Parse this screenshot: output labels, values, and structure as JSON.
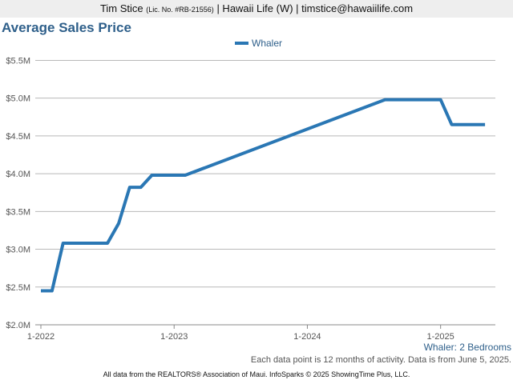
{
  "header": {
    "agent_name": "Tim Stice",
    "license": "(Lic. No. #RB-21556)",
    "rest": "| Hawaii Life (W) | timstice@hawaiilife.com"
  },
  "colors": {
    "series": "#2a77b4",
    "title": "#2e5f8a",
    "grid": "#b8b8b8"
  },
  "chart_data": {
    "type": "line",
    "title": "Average Sales Price",
    "xlabel": "",
    "ylabel": "",
    "x_ticks": [
      "1-2022",
      "1-2023",
      "1-2024",
      "1-2025"
    ],
    "y_ticks": [
      "$2.0M",
      "$2.5M",
      "$3.0M",
      "$3.5M",
      "$4.0M",
      "$4.5M",
      "$5.0M",
      "$5.5M"
    ],
    "ylim": [
      2000000,
      5600000
    ],
    "xlim": [
      "2022-01",
      "2025-05"
    ],
    "grid": true,
    "legend_position": "top-center",
    "series": [
      {
        "name": "Whaler",
        "points": [
          {
            "x": "2022-01",
            "y": 2450000
          },
          {
            "x": "2022-02",
            "y": 2450000
          },
          {
            "x": "2022-03",
            "y": 3080000
          },
          {
            "x": "2022-04",
            "y": 3080000
          },
          {
            "x": "2022-05",
            "y": 3080000
          },
          {
            "x": "2022-06",
            "y": 3080000
          },
          {
            "x": "2022-07",
            "y": 3080000
          },
          {
            "x": "2022-08",
            "y": 3340000
          },
          {
            "x": "2022-09",
            "y": 3820000
          },
          {
            "x": "2022-10",
            "y": 3820000
          },
          {
            "x": "2022-11",
            "y": 3980000
          },
          {
            "x": "2022-12",
            "y": 3980000
          },
          {
            "x": "2023-01",
            "y": 3980000
          },
          {
            "x": "2023-02",
            "y": 3980000
          },
          {
            "x": "2024-08",
            "y": 4980000
          },
          {
            "x": "2024-09",
            "y": 4980000
          },
          {
            "x": "2024-10",
            "y": 4980000
          },
          {
            "x": "2024-11",
            "y": 4980000
          },
          {
            "x": "2024-12",
            "y": 4980000
          },
          {
            "x": "2025-01",
            "y": 4980000
          },
          {
            "x": "2025-02",
            "y": 4650000
          },
          {
            "x": "2025-03",
            "y": 4650000
          },
          {
            "x": "2025-04",
            "y": 4650000
          },
          {
            "x": "2025-05",
            "y": 4650000
          }
        ]
      }
    ]
  },
  "subcaption": "Whaler: 2 Bedrooms",
  "note": "Each data point is 12 months of activity. Data is from June 5, 2025.",
  "footer": "All data from the REALTORS® Association of Maui. InfoSparks © 2025 ShowingTime Plus, LLC."
}
